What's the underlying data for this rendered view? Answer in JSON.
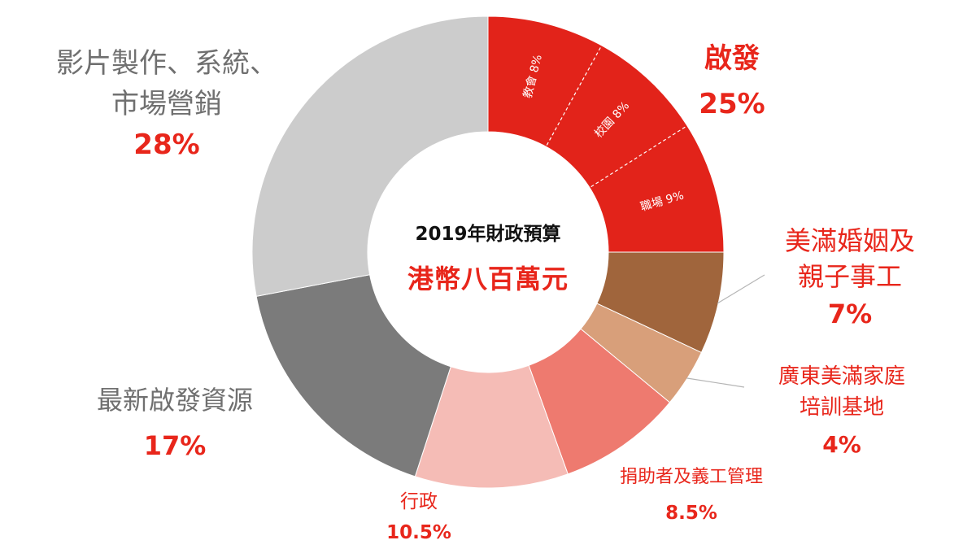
{
  "chart_data": {
    "type": "pie",
    "donut": true,
    "center": {
      "title": "2019年財政預算",
      "subtitle": "港幣八百萬元"
    },
    "slices": [
      {
        "label": "啟發",
        "value": 25,
        "value_label": "25%",
        "color": "#e2231a",
        "sub_slices": [
          {
            "label": "教會 8%",
            "value": 8
          },
          {
            "label": "校園 8%",
            "value": 8
          },
          {
            "label": "職場 9%",
            "value": 9
          }
        ]
      },
      {
        "label": "美滿婚姻及親子事工",
        "value": 7,
        "value_label": "7%",
        "color": "#a0653c"
      },
      {
        "label": "廣東美滿家庭培訓基地",
        "value": 4,
        "value_label": "4%",
        "color": "#d89f7a"
      },
      {
        "label": "捐助者及義工管理",
        "value": 8.5,
        "value_label": "8.5%",
        "color": "#ee7a6f"
      },
      {
        "label": "行政",
        "value": 10.5,
        "value_label": "10.5%",
        "color": "#f5bcb6"
      },
      {
        "label": "最新啟發資源",
        "value": 17,
        "value_label": "17%",
        "color": "#7b7b7b"
      },
      {
        "label": "影片製作、系統、市場營銷",
        "value": 28,
        "value_label": "28%",
        "color": "#cccccc"
      }
    ]
  },
  "labels": {
    "qifa_title": "啟發",
    "qifa_pct": "25%",
    "marriage_line1": "美滿婚姻及",
    "marriage_line2": "親子事工",
    "marriage_pct": "7%",
    "guangdong_line1": "廣東美滿家庭",
    "guangdong_line2": "培訓基地",
    "guangdong_pct": "4%",
    "donor_title": "捐助者及義工管理",
    "donor_pct": "8.5%",
    "admin_title": "行政",
    "admin_pct": "10.5%",
    "resources_title": "最新啟發資源",
    "resources_pct": "17%",
    "video_line1": "影片製作、系統、",
    "video_line2": "市場營銷",
    "video_pct": "28%"
  }
}
